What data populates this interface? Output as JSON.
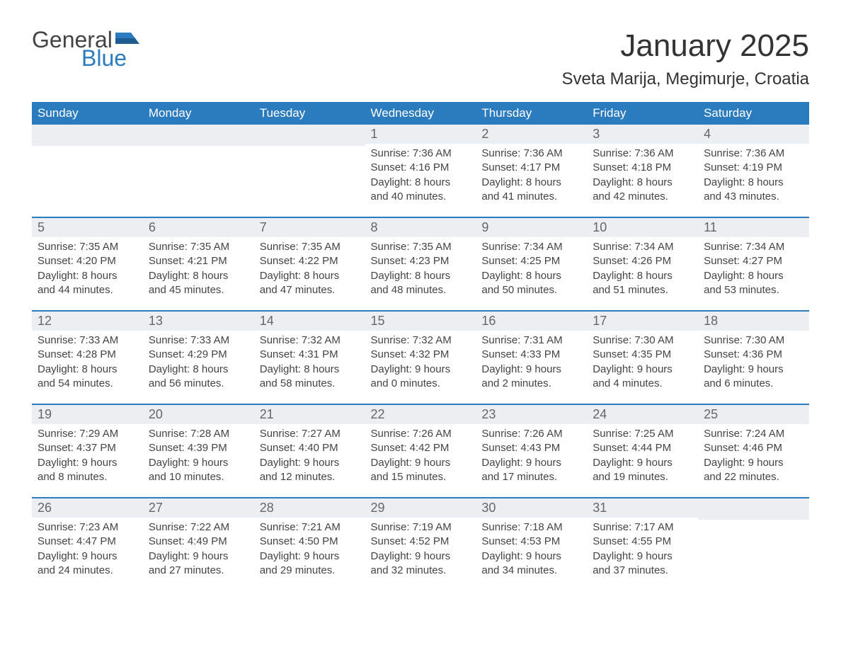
{
  "logo": {
    "word1": "General",
    "word2": "Blue"
  },
  "title": "January 2025",
  "location": "Sveta Marija, Megimurje, Croatia",
  "colors": {
    "header_bg": "#2b7bbf",
    "header_text": "#ffffff",
    "daynum_bg": "#eceff1",
    "row_divider": "#2b7bbf",
    "body_text": "#444444",
    "page_bg": "#ffffff"
  },
  "weekdays": [
    "Sunday",
    "Monday",
    "Tuesday",
    "Wednesday",
    "Thursday",
    "Friday",
    "Saturday"
  ],
  "labels": {
    "sunrise": "Sunrise:",
    "sunset": "Sunset:",
    "daylight": "Daylight:"
  },
  "weeks": [
    [
      {
        "blank": true
      },
      {
        "blank": true
      },
      {
        "blank": true
      },
      {
        "day": "1",
        "sunrise": "7:36 AM",
        "sunset": "4:16 PM",
        "daylight": "8 hours and 40 minutes."
      },
      {
        "day": "2",
        "sunrise": "7:36 AM",
        "sunset": "4:17 PM",
        "daylight": "8 hours and 41 minutes."
      },
      {
        "day": "3",
        "sunrise": "7:36 AM",
        "sunset": "4:18 PM",
        "daylight": "8 hours and 42 minutes."
      },
      {
        "day": "4",
        "sunrise": "7:36 AM",
        "sunset": "4:19 PM",
        "daylight": "8 hours and 43 minutes."
      }
    ],
    [
      {
        "day": "5",
        "sunrise": "7:35 AM",
        "sunset": "4:20 PM",
        "daylight": "8 hours and 44 minutes."
      },
      {
        "day": "6",
        "sunrise": "7:35 AM",
        "sunset": "4:21 PM",
        "daylight": "8 hours and 45 minutes."
      },
      {
        "day": "7",
        "sunrise": "7:35 AM",
        "sunset": "4:22 PM",
        "daylight": "8 hours and 47 minutes."
      },
      {
        "day": "8",
        "sunrise": "7:35 AM",
        "sunset": "4:23 PM",
        "daylight": "8 hours and 48 minutes."
      },
      {
        "day": "9",
        "sunrise": "7:34 AM",
        "sunset": "4:25 PM",
        "daylight": "8 hours and 50 minutes."
      },
      {
        "day": "10",
        "sunrise": "7:34 AM",
        "sunset": "4:26 PM",
        "daylight": "8 hours and 51 minutes."
      },
      {
        "day": "11",
        "sunrise": "7:34 AM",
        "sunset": "4:27 PM",
        "daylight": "8 hours and 53 minutes."
      }
    ],
    [
      {
        "day": "12",
        "sunrise": "7:33 AM",
        "sunset": "4:28 PM",
        "daylight": "8 hours and 54 minutes."
      },
      {
        "day": "13",
        "sunrise": "7:33 AM",
        "sunset": "4:29 PM",
        "daylight": "8 hours and 56 minutes."
      },
      {
        "day": "14",
        "sunrise": "7:32 AM",
        "sunset": "4:31 PM",
        "daylight": "8 hours and 58 minutes."
      },
      {
        "day": "15",
        "sunrise": "7:32 AM",
        "sunset": "4:32 PM",
        "daylight": "9 hours and 0 minutes."
      },
      {
        "day": "16",
        "sunrise": "7:31 AM",
        "sunset": "4:33 PM",
        "daylight": "9 hours and 2 minutes."
      },
      {
        "day": "17",
        "sunrise": "7:30 AM",
        "sunset": "4:35 PM",
        "daylight": "9 hours and 4 minutes."
      },
      {
        "day": "18",
        "sunrise": "7:30 AM",
        "sunset": "4:36 PM",
        "daylight": "9 hours and 6 minutes."
      }
    ],
    [
      {
        "day": "19",
        "sunrise": "7:29 AM",
        "sunset": "4:37 PM",
        "daylight": "9 hours and 8 minutes."
      },
      {
        "day": "20",
        "sunrise": "7:28 AM",
        "sunset": "4:39 PM",
        "daylight": "9 hours and 10 minutes."
      },
      {
        "day": "21",
        "sunrise": "7:27 AM",
        "sunset": "4:40 PM",
        "daylight": "9 hours and 12 minutes."
      },
      {
        "day": "22",
        "sunrise": "7:26 AM",
        "sunset": "4:42 PM",
        "daylight": "9 hours and 15 minutes."
      },
      {
        "day": "23",
        "sunrise": "7:26 AM",
        "sunset": "4:43 PM",
        "daylight": "9 hours and 17 minutes."
      },
      {
        "day": "24",
        "sunrise": "7:25 AM",
        "sunset": "4:44 PM",
        "daylight": "9 hours and 19 minutes."
      },
      {
        "day": "25",
        "sunrise": "7:24 AM",
        "sunset": "4:46 PM",
        "daylight": "9 hours and 22 minutes."
      }
    ],
    [
      {
        "day": "26",
        "sunrise": "7:23 AM",
        "sunset": "4:47 PM",
        "daylight": "9 hours and 24 minutes."
      },
      {
        "day": "27",
        "sunrise": "7:22 AM",
        "sunset": "4:49 PM",
        "daylight": "9 hours and 27 minutes."
      },
      {
        "day": "28",
        "sunrise": "7:21 AM",
        "sunset": "4:50 PM",
        "daylight": "9 hours and 29 minutes."
      },
      {
        "day": "29",
        "sunrise": "7:19 AM",
        "sunset": "4:52 PM",
        "daylight": "9 hours and 32 minutes."
      },
      {
        "day": "30",
        "sunrise": "7:18 AM",
        "sunset": "4:53 PM",
        "daylight": "9 hours and 34 minutes."
      },
      {
        "day": "31",
        "sunrise": "7:17 AM",
        "sunset": "4:55 PM",
        "daylight": "9 hours and 37 minutes."
      },
      {
        "blank": true
      }
    ]
  ]
}
